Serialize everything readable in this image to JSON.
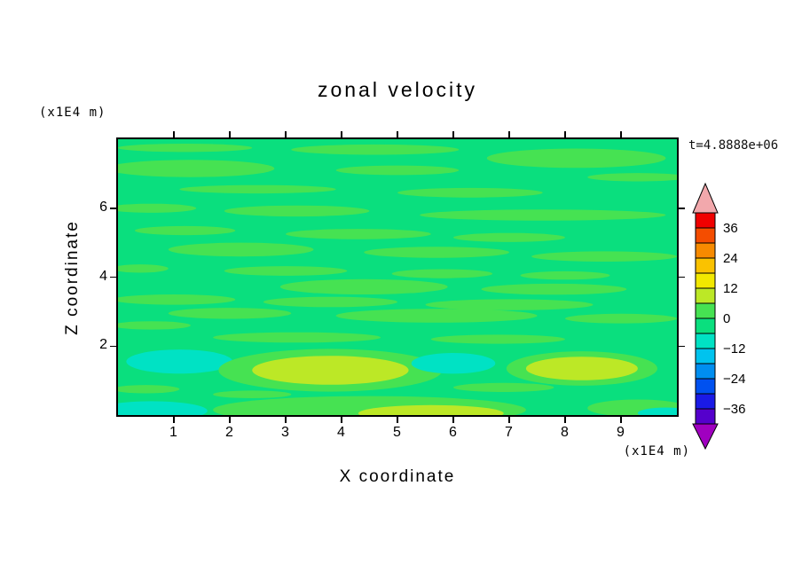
{
  "header": {
    "title": "zonal velocity",
    "time_label": "t=4.8888e+06"
  },
  "axes": {
    "x": {
      "label": "X coordinate",
      "unit": "(x1E4 m)",
      "ticks": [
        1,
        2,
        3,
        4,
        5,
        6,
        7,
        8,
        9
      ],
      "range": [
        0,
        10
      ]
    },
    "y": {
      "label": "Z coordinate",
      "unit": "(x1E4 m)",
      "ticks": [
        2,
        4,
        6
      ],
      "range": [
        0,
        8
      ]
    }
  },
  "colorbar": {
    "labels": [
      36,
      24,
      12,
      0,
      -12,
      -24,
      -36
    ],
    "contour_interval": 6,
    "over_color": "#F2A8AC",
    "under_color": "#A000C0",
    "segments": [
      {
        "range": "36..42",
        "color": "#F00000"
      },
      {
        "range": "30..36",
        "color": "#F44D00"
      },
      {
        "range": "24..30",
        "color": "#F78A00"
      },
      {
        "range": "18..24",
        "color": "#FAC200"
      },
      {
        "range": "12..18",
        "color": "#F2E800"
      },
      {
        "range": "6..12",
        "color": "#BCE826"
      },
      {
        "range": "0..6",
        "color": "#46E252"
      },
      {
        "range": "-6..0",
        "color": "#0ADF7E"
      },
      {
        "range": "-12..-6",
        "color": "#00E2C4"
      },
      {
        "range": "-18..-12",
        "color": "#00C3EE"
      },
      {
        "range": "-24..-18",
        "color": "#008EF0"
      },
      {
        "range": "-30..-24",
        "color": "#0051F0"
      },
      {
        "range": "-36..-30",
        "color": "#1A1AE6"
      },
      {
        "range": "-42..-36",
        "color": "#5500CC"
      }
    ]
  },
  "chart_data": {
    "type": "heatmap",
    "subtype": "filled-contour",
    "title": "zonal velocity",
    "xlabel": "X coordinate",
    "ylabel": "Z coordinate",
    "x_unit": "x1E4 m",
    "y_unit": "x1E4 m",
    "time": "t=4.8888e+06",
    "x_range": [
      0,
      10
    ],
    "y_range": [
      0,
      8
    ],
    "value_levels": [
      -42,
      -36,
      -30,
      -24,
      -18,
      -12,
      -6,
      0,
      6,
      12,
      18,
      24,
      30,
      36,
      42
    ],
    "background_band": "-6..0",
    "description": "Filled contour field of zonal velocity, mostly in the -6..0 band (emerald green) with horizontal streaks in the 0..6 band, cyan patches (-12..-6) and yellow-green maxima (6..12) near the bottom boundary.",
    "features": [
      {
        "x": 1.2,
        "y": 7.75,
        "rx": 1.2,
        "ry": 0.12
      },
      {
        "x": 4.6,
        "y": 7.7,
        "rx": 1.5,
        "ry": 0.15
      },
      {
        "x": 8.2,
        "y": 7.45,
        "rx": 1.6,
        "ry": 0.28
      },
      {
        "x": 1.3,
        "y": 7.15,
        "rx": 1.5,
        "ry": 0.25
      },
      {
        "x": 5.0,
        "y": 7.1,
        "rx": 1.1,
        "ry": 0.14
      },
      {
        "x": 9.3,
        "y": 6.9,
        "rx": 0.9,
        "ry": 0.12
      },
      {
        "x": 2.5,
        "y": 6.55,
        "rx": 1.4,
        "ry": 0.12
      },
      {
        "x": 6.3,
        "y": 6.45,
        "rx": 1.3,
        "ry": 0.14
      },
      {
        "x": 0.6,
        "y": 6.0,
        "rx": 0.8,
        "ry": 0.13
      },
      {
        "x": 3.2,
        "y": 5.92,
        "rx": 1.3,
        "ry": 0.16
      },
      {
        "x": 7.6,
        "y": 5.8,
        "rx": 2.2,
        "ry": 0.16
      },
      {
        "x": 1.2,
        "y": 5.35,
        "rx": 0.9,
        "ry": 0.13
      },
      {
        "x": 4.3,
        "y": 5.25,
        "rx": 1.3,
        "ry": 0.15
      },
      {
        "x": 7.0,
        "y": 5.15,
        "rx": 1.0,
        "ry": 0.13
      },
      {
        "x": 2.2,
        "y": 4.8,
        "rx": 1.3,
        "ry": 0.2
      },
      {
        "x": 5.7,
        "y": 4.72,
        "rx": 1.3,
        "ry": 0.16
      },
      {
        "x": 8.7,
        "y": 4.6,
        "rx": 1.3,
        "ry": 0.15
      },
      {
        "x": 0.4,
        "y": 4.25,
        "rx": 0.5,
        "ry": 0.12
      },
      {
        "x": 3.0,
        "y": 4.18,
        "rx": 1.1,
        "ry": 0.14
      },
      {
        "x": 5.8,
        "y": 4.1,
        "rx": 0.9,
        "ry": 0.13
      },
      {
        "x": 8.0,
        "y": 4.05,
        "rx": 0.8,
        "ry": 0.12
      },
      {
        "x": 4.4,
        "y": 3.72,
        "rx": 1.5,
        "ry": 0.22
      },
      {
        "x": 7.8,
        "y": 3.65,
        "rx": 1.3,
        "ry": 0.16
      },
      {
        "x": 1.0,
        "y": 3.35,
        "rx": 1.1,
        "ry": 0.15
      },
      {
        "x": 3.8,
        "y": 3.28,
        "rx": 1.2,
        "ry": 0.15
      },
      {
        "x": 7.0,
        "y": 3.2,
        "rx": 1.5,
        "ry": 0.16
      },
      {
        "x": 2.0,
        "y": 2.95,
        "rx": 1.1,
        "ry": 0.16
      },
      {
        "x": 5.7,
        "y": 2.88,
        "rx": 1.8,
        "ry": 0.2
      },
      {
        "x": 9.0,
        "y": 2.8,
        "rx": 1.0,
        "ry": 0.14
      },
      {
        "x": 0.6,
        "y": 2.6,
        "rx": 0.7,
        "ry": 0.12
      },
      {
        "x": 3.2,
        "y": 2.25,
        "rx": 1.5,
        "ry": 0.15
      },
      {
        "x": 6.8,
        "y": 2.2,
        "rx": 1.2,
        "ry": 0.13
      },
      {
        "x": 1.1,
        "y": 1.55,
        "rx": 0.95,
        "ry": 0.35,
        "band": "-12..-6"
      },
      {
        "x": 3.8,
        "y": 1.3,
        "rx": 2.0,
        "ry": 0.62
      },
      {
        "x": 3.8,
        "y": 1.3,
        "rx": 1.4,
        "ry": 0.42,
        "band": "6..12"
      },
      {
        "x": 6.0,
        "y": 1.5,
        "rx": 0.75,
        "ry": 0.3,
        "band": "-12..-6"
      },
      {
        "x": 8.3,
        "y": 1.35,
        "rx": 1.35,
        "ry": 0.5
      },
      {
        "x": 8.3,
        "y": 1.35,
        "rx": 1.0,
        "ry": 0.34,
        "band": "6..12"
      },
      {
        "x": 0.5,
        "y": 0.75,
        "rx": 0.6,
        "ry": 0.12
      },
      {
        "x": 6.9,
        "y": 0.8,
        "rx": 0.9,
        "ry": 0.13
      },
      {
        "x": 2.4,
        "y": 0.6,
        "rx": 0.7,
        "ry": 0.11
      },
      {
        "x": 0.6,
        "y": 0.12,
        "rx": 1.0,
        "ry": 0.28,
        "band": "-12..-6"
      },
      {
        "x": 4.5,
        "y": 0.15,
        "rx": 2.8,
        "ry": 0.4
      },
      {
        "x": 5.6,
        "y": 0.05,
        "rx": 1.3,
        "ry": 0.24,
        "band": "6..12"
      },
      {
        "x": 9.3,
        "y": 0.2,
        "rx": 0.9,
        "ry": 0.25
      },
      {
        "x": 9.8,
        "y": 0.06,
        "rx": 0.5,
        "ry": 0.16,
        "band": "-12..-6"
      }
    ]
  }
}
